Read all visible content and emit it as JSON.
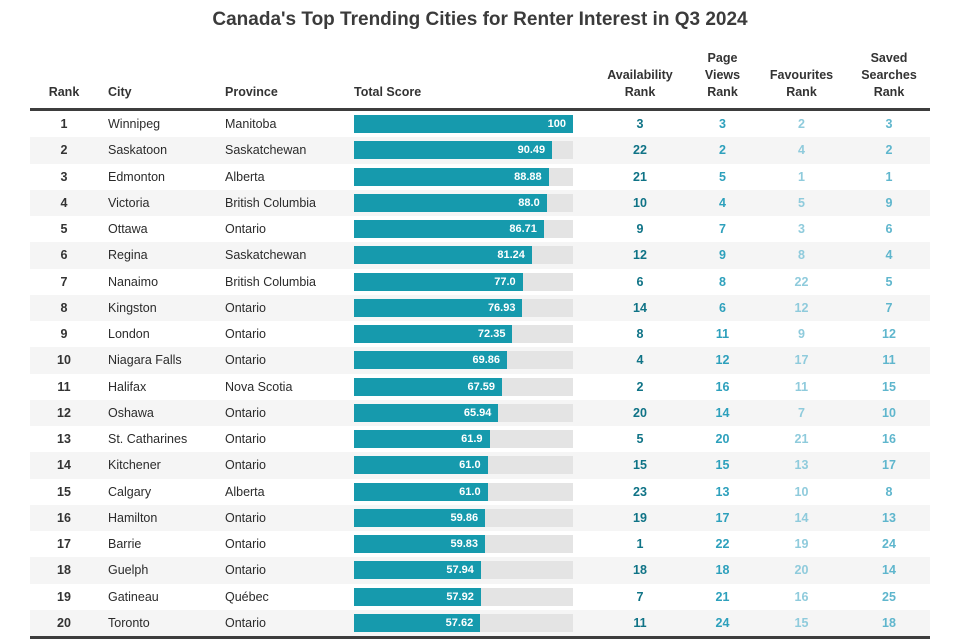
{
  "chart_data": {
    "type": "table",
    "title": "Canada's Top Trending Cities for Renter Interest in Q3 2024",
    "columns": [
      "Rank",
      "City",
      "Province",
      "Total Score",
      "Availability\nRank",
      "Page\nViews\nRank",
      "Favourites\nRank",
      "Saved\nSearches\nRank"
    ],
    "score_axis": {
      "min": 0,
      "max": 100,
      "bar_style": "horizontal-inline-bar"
    },
    "rows": [
      {
        "rank": "1",
        "city": "Winnipeg",
        "province": "Manitoba",
        "score": "100",
        "score_value": 100,
        "availability_rank": "3",
        "page_views_rank": "3",
        "favourites_rank": "2",
        "saved_searches_rank": "3"
      },
      {
        "rank": "2",
        "city": "Saskatoon",
        "province": "Saskatchewan",
        "score": "90.49",
        "score_value": 90.49,
        "availability_rank": "22",
        "page_views_rank": "2",
        "favourites_rank": "4",
        "saved_searches_rank": "2"
      },
      {
        "rank": "3",
        "city": "Edmonton",
        "province": "Alberta",
        "score": "88.88",
        "score_value": 88.88,
        "availability_rank": "21",
        "page_views_rank": "5",
        "favourites_rank": "1",
        "saved_searches_rank": "1"
      },
      {
        "rank": "4",
        "city": "Victoria",
        "province": "British Columbia",
        "score": "88.0",
        "score_value": 88.0,
        "availability_rank": "10",
        "page_views_rank": "4",
        "favourites_rank": "5",
        "saved_searches_rank": "9"
      },
      {
        "rank": "5",
        "city": "Ottawa",
        "province": "Ontario",
        "score": "86.71",
        "score_value": 86.71,
        "availability_rank": "9",
        "page_views_rank": "7",
        "favourites_rank": "3",
        "saved_searches_rank": "6"
      },
      {
        "rank": "6",
        "city": "Regina",
        "province": "Saskatchewan",
        "score": "81.24",
        "score_value": 81.24,
        "availability_rank": "12",
        "page_views_rank": "9",
        "favourites_rank": "8",
        "saved_searches_rank": "4"
      },
      {
        "rank": "7",
        "city": "Nanaimo",
        "province": "British Columbia",
        "score": "77.0",
        "score_value": 77.0,
        "availability_rank": "6",
        "page_views_rank": "8",
        "favourites_rank": "22",
        "saved_searches_rank": "5"
      },
      {
        "rank": "8",
        "city": "Kingston",
        "province": "Ontario",
        "score": "76.93",
        "score_value": 76.93,
        "availability_rank": "14",
        "page_views_rank": "6",
        "favourites_rank": "12",
        "saved_searches_rank": "7"
      },
      {
        "rank": "9",
        "city": "London",
        "province": "Ontario",
        "score": "72.35",
        "score_value": 72.35,
        "availability_rank": "8",
        "page_views_rank": "11",
        "favourites_rank": "9",
        "saved_searches_rank": "12"
      },
      {
        "rank": "10",
        "city": "Niagara Falls",
        "province": "Ontario",
        "score": "69.86",
        "score_value": 69.86,
        "availability_rank": "4",
        "page_views_rank": "12",
        "favourites_rank": "17",
        "saved_searches_rank": "11"
      },
      {
        "rank": "11",
        "city": "Halifax",
        "province": "Nova Scotia",
        "score": "67.59",
        "score_value": 67.59,
        "availability_rank": "2",
        "page_views_rank": "16",
        "favourites_rank": "11",
        "saved_searches_rank": "15"
      },
      {
        "rank": "12",
        "city": "Oshawa",
        "province": "Ontario",
        "score": "65.94",
        "score_value": 65.94,
        "availability_rank": "20",
        "page_views_rank": "14",
        "favourites_rank": "7",
        "saved_searches_rank": "10"
      },
      {
        "rank": "13",
        "city": "St. Catharines",
        "province": "Ontario",
        "score": "61.9",
        "score_value": 61.9,
        "availability_rank": "5",
        "page_views_rank": "20",
        "favourites_rank": "21",
        "saved_searches_rank": "16"
      },
      {
        "rank": "14",
        "city": "Kitchener",
        "province": "Ontario",
        "score": "61.0",
        "score_value": 61.0,
        "availability_rank": "15",
        "page_views_rank": "15",
        "favourites_rank": "13",
        "saved_searches_rank": "17"
      },
      {
        "rank": "15",
        "city": "Calgary",
        "province": "Alberta",
        "score": "61.0",
        "score_value": 61.0,
        "availability_rank": "23",
        "page_views_rank": "13",
        "favourites_rank": "10",
        "saved_searches_rank": "8"
      },
      {
        "rank": "16",
        "city": "Hamilton",
        "province": "Ontario",
        "score": "59.86",
        "score_value": 59.86,
        "availability_rank": "19",
        "page_views_rank": "17",
        "favourites_rank": "14",
        "saved_searches_rank": "13"
      },
      {
        "rank": "17",
        "city": "Barrie",
        "province": "Ontario",
        "score": "59.83",
        "score_value": 59.83,
        "availability_rank": "1",
        "page_views_rank": "22",
        "favourites_rank": "19",
        "saved_searches_rank": "24"
      },
      {
        "rank": "18",
        "city": "Guelph",
        "province": "Ontario",
        "score": "57.94",
        "score_value": 57.94,
        "availability_rank": "18",
        "page_views_rank": "18",
        "favourites_rank": "20",
        "saved_searches_rank": "14"
      },
      {
        "rank": "19",
        "city": "Gatineau",
        "province": "Québec",
        "score": "57.92",
        "score_value": 57.92,
        "availability_rank": "7",
        "page_views_rank": "21",
        "favourites_rank": "16",
        "saved_searches_rank": "25"
      },
      {
        "rank": "20",
        "city": "Toronto",
        "province": "Ontario",
        "score": "57.62",
        "score_value": 57.62,
        "availability_rank": "11",
        "page_views_rank": "24",
        "favourites_rank": "15",
        "saved_searches_rank": "18"
      }
    ],
    "colors": {
      "bar_fill": "#169aad",
      "bar_track": "#e4e4e4",
      "bar_label_text": "#ffffff",
      "availability_rank_text": "#0f7386",
      "page_views_rank_text": "#2da0bc",
      "favourites_rank_text": "#8fcbdc",
      "saved_searches_rank_text": "#5fb6cd",
      "header_border": "#3d3d3d",
      "stripe_row": "#f5f5f5"
    }
  }
}
